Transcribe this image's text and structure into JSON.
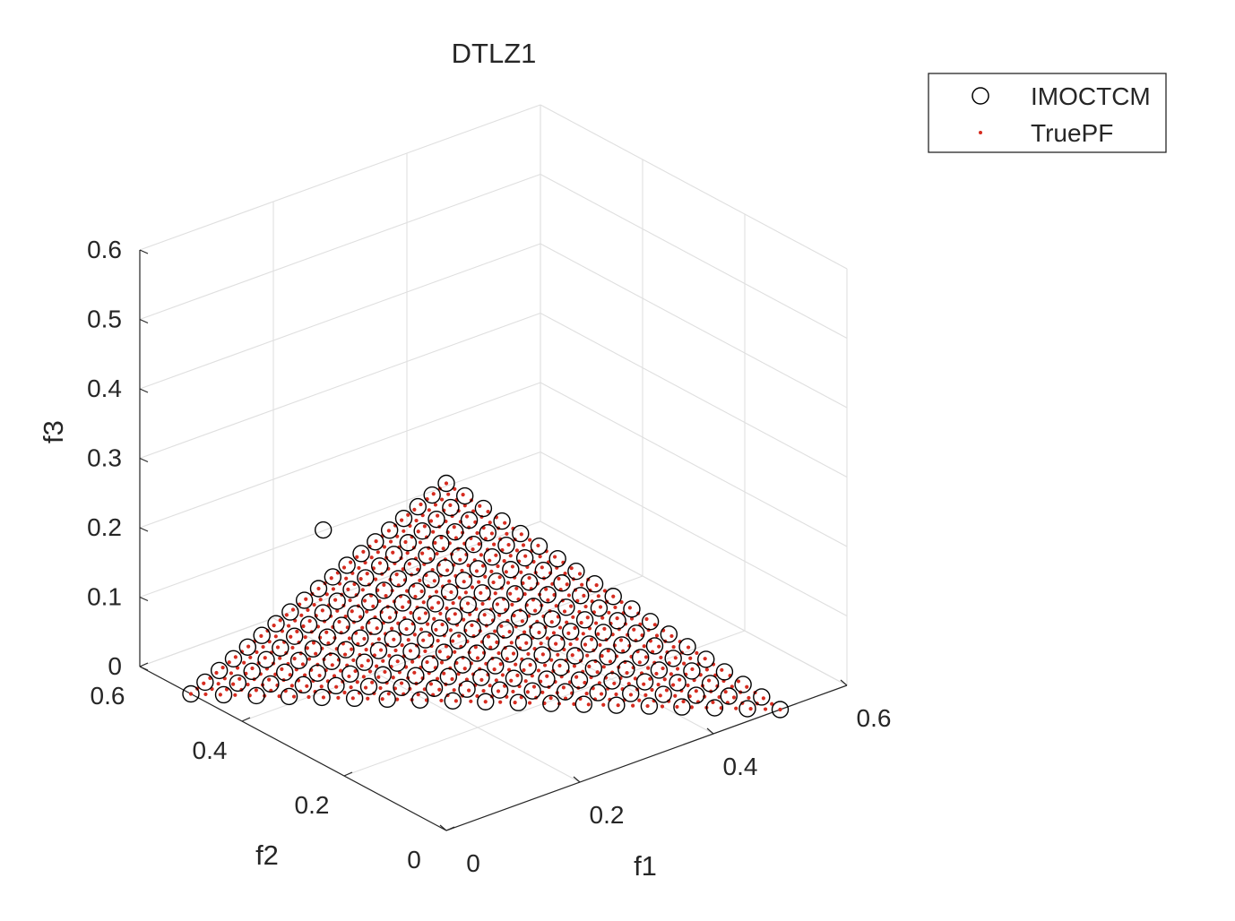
{
  "chart_data": {
    "type": "scatter",
    "dimensions": 3,
    "title": "DTLZ1",
    "xlabel": "f1",
    "ylabel": "f2",
    "zlabel": "f3",
    "xlim": [
      0,
      0.6
    ],
    "ylim": [
      0,
      0.6
    ],
    "zlim": [
      0,
      0.6
    ],
    "xticks": [
      "0",
      "0.2",
      "0.4",
      "0.6"
    ],
    "yticks": [
      "0",
      "0.2",
      "0.4",
      "0.6"
    ],
    "zticks": [
      "0",
      "0.1",
      "0.2",
      "0.3",
      "0.4",
      "0.5",
      "0.6"
    ],
    "grid": true,
    "legend": {
      "position": "top-right"
    },
    "series": [
      {
        "name": "IMOCTCM",
        "marker": "open-circle",
        "color": "#000000",
        "constraint": "f1 + f2 + f3 = 0.5",
        "divisions": 18,
        "outliers": [
          [
            0.16,
            0.45,
            0.2
          ]
        ]
      },
      {
        "name": "TruePF",
        "marker": "dot",
        "color": "#d62b1f",
        "constraint": "f1 + f2 + f3 = 0.5",
        "divisions": 40
      }
    ]
  }
}
